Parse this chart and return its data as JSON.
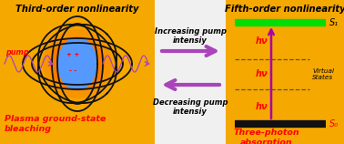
{
  "bg_color": "#F0F0F0",
  "left_bg": "#F5A800",
  "right_bg": "#F5A800",
  "middle_bg": "#F0F0F0",
  "left_panel": {
    "title": "Third-order nonlinearity",
    "subtitle": "Plasma ground-state\nbleaching",
    "subtitle_color": "#FF0000",
    "pump_label": "pump",
    "pump_label_color": "#FF0000"
  },
  "right_panel": {
    "title": "Fifth-order nonlinearity",
    "subtitle": "Three-photon\nabsorption",
    "subtitle_color": "#FF0000",
    "s1_label": "S₁",
    "s0_label": "S₀",
    "virtual_label": "Virtual\nStates",
    "hv_label": "hν",
    "hv_color": "#FF0000",
    "arrow_color": "#AA00AA",
    "s1_bar_color": "#00DD00",
    "s0_bar_color": "#111111",
    "dashes_color": "#555555"
  },
  "middle_arrows": {
    "up_label": "Increasing pump\nintensiy",
    "down_label": "Decreasing pump\nintensiy",
    "arrow_color": "#AA44BB"
  },
  "wave_color": "#AA44BB",
  "orbital_color": "#111111"
}
